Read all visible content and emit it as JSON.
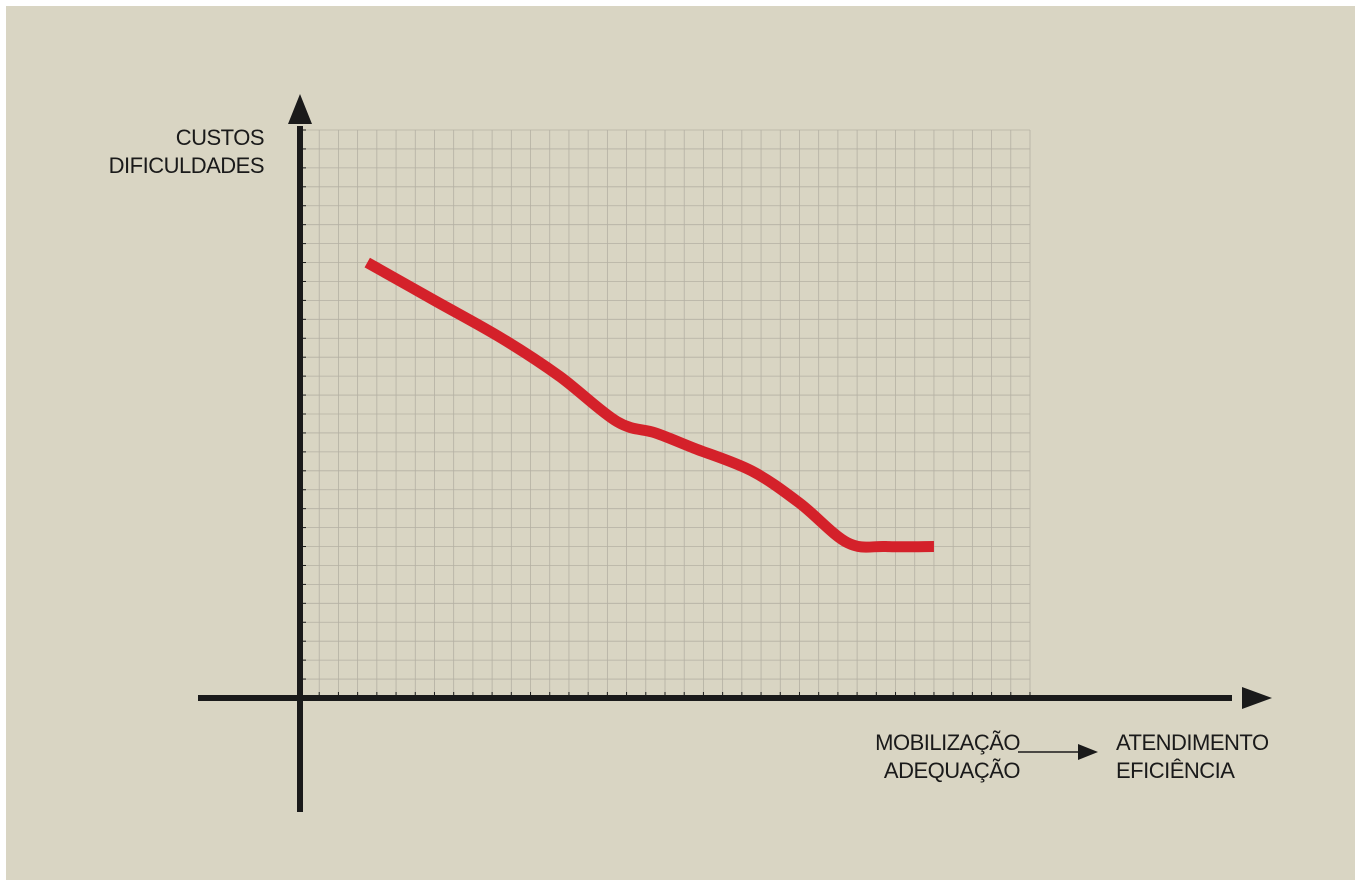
{
  "colors": {
    "background": "#d9d5c3",
    "grid": "#b4b0a3",
    "axis": "#1a1a1a",
    "curve": "#d4212a"
  },
  "labels": {
    "y_line1": "CUSTOS",
    "y_line2": "DIFICULDADES",
    "x_from_line1": "MOBILIZAÇÃO",
    "x_from_line2": "ADEQUAÇÃO",
    "x_to_line1": "ATENDIMENTO",
    "x_to_line2": "EFICIÊNCIA"
  },
  "chart_data": {
    "type": "line",
    "title": "",
    "xlabel": "MOBILIZAÇÃO ADEQUAÇÃO → ATENDIMENTO EFICIÊNCIA",
    "ylabel": "CUSTOS DIFICULDADES",
    "grid": true,
    "xlim": [
      0,
      38
    ],
    "ylim": [
      0,
      30
    ],
    "series": [
      {
        "values": [
          [
            3.5,
            23.0
          ],
          [
            7.0,
            21.0
          ],
          [
            10.5,
            19.0
          ],
          [
            13.5,
            17.0
          ],
          [
            16.5,
            14.6
          ],
          [
            18.5,
            14.0
          ],
          [
            20.5,
            13.2
          ],
          [
            23.5,
            12.0
          ],
          [
            26.0,
            10.3
          ],
          [
            28.5,
            8.2
          ],
          [
            30.5,
            8.0
          ],
          [
            33.0,
            8.0
          ]
        ]
      }
    ]
  }
}
